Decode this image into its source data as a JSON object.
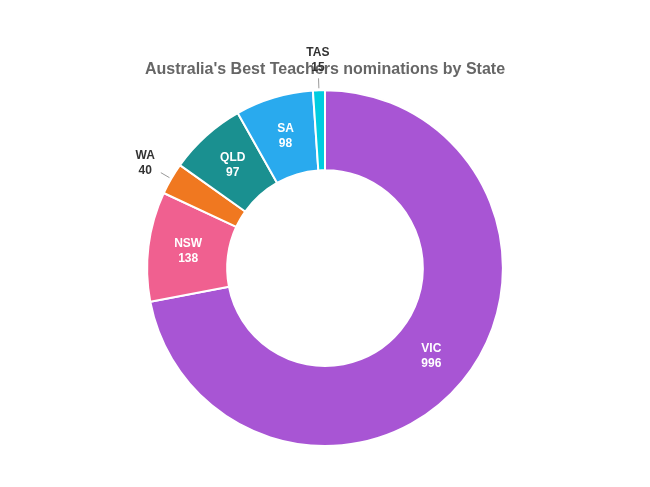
{
  "chart_data": {
    "type": "donut",
    "title": "Australia's Best Teachers nominations by State",
    "categories": [
      "VIC",
      "NSW",
      "WA",
      "QLD",
      "SA",
      "TAS"
    ],
    "values": [
      996,
      138,
      40,
      97,
      98,
      15
    ],
    "colors": [
      "#a855d4",
      "#f06090",
      "#f07820",
      "#1a9090",
      "#29aaee",
      "#00cce0"
    ],
    "data_labels": true
  }
}
